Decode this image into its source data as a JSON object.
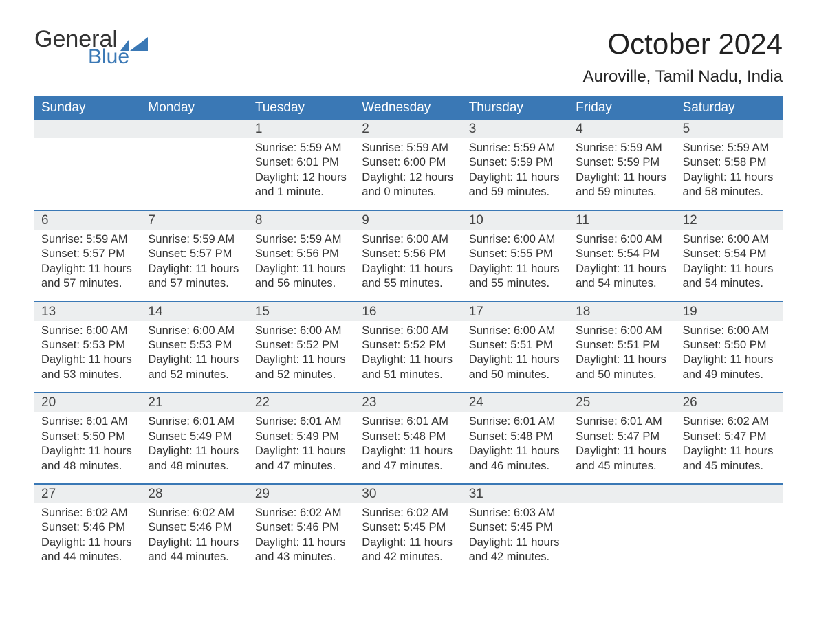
{
  "brand": {
    "word1": "General",
    "word2": "Blue",
    "flag_color": "#3a78b5"
  },
  "title": "October 2024",
  "location": "Auroville, Tamil Nadu, India",
  "colors": {
    "header_bg": "#3a78b5",
    "header_text": "#ffffff",
    "daynum_bg": "#eceeef",
    "week_divider": "#3a78b5",
    "body_text": "#333333",
    "page_bg": "#ffffff"
  },
  "typography": {
    "title_fontsize": 42,
    "location_fontsize": 24,
    "dow_fontsize": 19,
    "daynum_fontsize": 19,
    "body_fontsize": 16.5
  },
  "layout": {
    "columns": 7,
    "rows": 5,
    "cell_min_height": 98
  },
  "dow": [
    "Sunday",
    "Monday",
    "Tuesday",
    "Wednesday",
    "Thursday",
    "Friday",
    "Saturday"
  ],
  "weeks": [
    [
      {
        "num": "",
        "sunrise": "",
        "sunset": "",
        "daylight": ""
      },
      {
        "num": "",
        "sunrise": "",
        "sunset": "",
        "daylight": ""
      },
      {
        "num": "1",
        "sunrise": "Sunrise: 5:59 AM",
        "sunset": "Sunset: 6:01 PM",
        "daylight": "Daylight: 12 hours and 1 minute."
      },
      {
        "num": "2",
        "sunrise": "Sunrise: 5:59 AM",
        "sunset": "Sunset: 6:00 PM",
        "daylight": "Daylight: 12 hours and 0 minutes."
      },
      {
        "num": "3",
        "sunrise": "Sunrise: 5:59 AM",
        "sunset": "Sunset: 5:59 PM",
        "daylight": "Daylight: 11 hours and 59 minutes."
      },
      {
        "num": "4",
        "sunrise": "Sunrise: 5:59 AM",
        "sunset": "Sunset: 5:59 PM",
        "daylight": "Daylight: 11 hours and 59 minutes."
      },
      {
        "num": "5",
        "sunrise": "Sunrise: 5:59 AM",
        "sunset": "Sunset: 5:58 PM",
        "daylight": "Daylight: 11 hours and 58 minutes."
      }
    ],
    [
      {
        "num": "6",
        "sunrise": "Sunrise: 5:59 AM",
        "sunset": "Sunset: 5:57 PM",
        "daylight": "Daylight: 11 hours and 57 minutes."
      },
      {
        "num": "7",
        "sunrise": "Sunrise: 5:59 AM",
        "sunset": "Sunset: 5:57 PM",
        "daylight": "Daylight: 11 hours and 57 minutes."
      },
      {
        "num": "8",
        "sunrise": "Sunrise: 5:59 AM",
        "sunset": "Sunset: 5:56 PM",
        "daylight": "Daylight: 11 hours and 56 minutes."
      },
      {
        "num": "9",
        "sunrise": "Sunrise: 6:00 AM",
        "sunset": "Sunset: 5:56 PM",
        "daylight": "Daylight: 11 hours and 55 minutes."
      },
      {
        "num": "10",
        "sunrise": "Sunrise: 6:00 AM",
        "sunset": "Sunset: 5:55 PM",
        "daylight": "Daylight: 11 hours and 55 minutes."
      },
      {
        "num": "11",
        "sunrise": "Sunrise: 6:00 AM",
        "sunset": "Sunset: 5:54 PM",
        "daylight": "Daylight: 11 hours and 54 minutes."
      },
      {
        "num": "12",
        "sunrise": "Sunrise: 6:00 AM",
        "sunset": "Sunset: 5:54 PM",
        "daylight": "Daylight: 11 hours and 54 minutes."
      }
    ],
    [
      {
        "num": "13",
        "sunrise": "Sunrise: 6:00 AM",
        "sunset": "Sunset: 5:53 PM",
        "daylight": "Daylight: 11 hours and 53 minutes."
      },
      {
        "num": "14",
        "sunrise": "Sunrise: 6:00 AM",
        "sunset": "Sunset: 5:53 PM",
        "daylight": "Daylight: 11 hours and 52 minutes."
      },
      {
        "num": "15",
        "sunrise": "Sunrise: 6:00 AM",
        "sunset": "Sunset: 5:52 PM",
        "daylight": "Daylight: 11 hours and 52 minutes."
      },
      {
        "num": "16",
        "sunrise": "Sunrise: 6:00 AM",
        "sunset": "Sunset: 5:52 PM",
        "daylight": "Daylight: 11 hours and 51 minutes."
      },
      {
        "num": "17",
        "sunrise": "Sunrise: 6:00 AM",
        "sunset": "Sunset: 5:51 PM",
        "daylight": "Daylight: 11 hours and 50 minutes."
      },
      {
        "num": "18",
        "sunrise": "Sunrise: 6:00 AM",
        "sunset": "Sunset: 5:51 PM",
        "daylight": "Daylight: 11 hours and 50 minutes."
      },
      {
        "num": "19",
        "sunrise": "Sunrise: 6:00 AM",
        "sunset": "Sunset: 5:50 PM",
        "daylight": "Daylight: 11 hours and 49 minutes."
      }
    ],
    [
      {
        "num": "20",
        "sunrise": "Sunrise: 6:01 AM",
        "sunset": "Sunset: 5:50 PM",
        "daylight": "Daylight: 11 hours and 48 minutes."
      },
      {
        "num": "21",
        "sunrise": "Sunrise: 6:01 AM",
        "sunset": "Sunset: 5:49 PM",
        "daylight": "Daylight: 11 hours and 48 minutes."
      },
      {
        "num": "22",
        "sunrise": "Sunrise: 6:01 AM",
        "sunset": "Sunset: 5:49 PM",
        "daylight": "Daylight: 11 hours and 47 minutes."
      },
      {
        "num": "23",
        "sunrise": "Sunrise: 6:01 AM",
        "sunset": "Sunset: 5:48 PM",
        "daylight": "Daylight: 11 hours and 47 minutes."
      },
      {
        "num": "24",
        "sunrise": "Sunrise: 6:01 AM",
        "sunset": "Sunset: 5:48 PM",
        "daylight": "Daylight: 11 hours and 46 minutes."
      },
      {
        "num": "25",
        "sunrise": "Sunrise: 6:01 AM",
        "sunset": "Sunset: 5:47 PM",
        "daylight": "Daylight: 11 hours and 45 minutes."
      },
      {
        "num": "26",
        "sunrise": "Sunrise: 6:02 AM",
        "sunset": "Sunset: 5:47 PM",
        "daylight": "Daylight: 11 hours and 45 minutes."
      }
    ],
    [
      {
        "num": "27",
        "sunrise": "Sunrise: 6:02 AM",
        "sunset": "Sunset: 5:46 PM",
        "daylight": "Daylight: 11 hours and 44 minutes."
      },
      {
        "num": "28",
        "sunrise": "Sunrise: 6:02 AM",
        "sunset": "Sunset: 5:46 PM",
        "daylight": "Daylight: 11 hours and 44 minutes."
      },
      {
        "num": "29",
        "sunrise": "Sunrise: 6:02 AM",
        "sunset": "Sunset: 5:46 PM",
        "daylight": "Daylight: 11 hours and 43 minutes."
      },
      {
        "num": "30",
        "sunrise": "Sunrise: 6:02 AM",
        "sunset": "Sunset: 5:45 PM",
        "daylight": "Daylight: 11 hours and 42 minutes."
      },
      {
        "num": "31",
        "sunrise": "Sunrise: 6:03 AM",
        "sunset": "Sunset: 5:45 PM",
        "daylight": "Daylight: 11 hours and 42 minutes."
      },
      {
        "num": "",
        "sunrise": "",
        "sunset": "",
        "daylight": ""
      },
      {
        "num": "",
        "sunrise": "",
        "sunset": "",
        "daylight": ""
      }
    ]
  ]
}
